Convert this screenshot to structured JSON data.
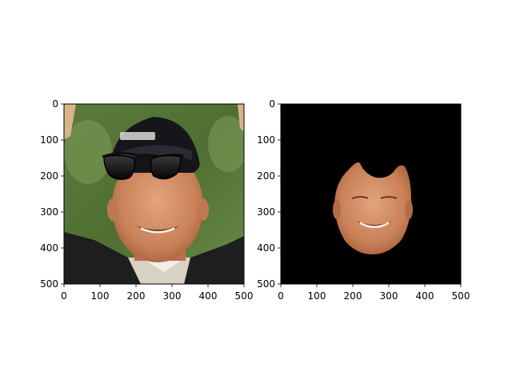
{
  "chart_data": [
    {
      "type": "image",
      "content": "photo of a smiling man in a cap with sunglasses overlaid on his face",
      "xlim": [
        0,
        500
      ],
      "ylim": [
        500,
        0
      ],
      "xticks": [
        0,
        100,
        200,
        300,
        400,
        500
      ],
      "yticks": [
        0,
        100,
        200,
        300,
        400,
        500
      ],
      "xticklabels": [
        "0",
        "100",
        "200",
        "300",
        "400",
        "500"
      ],
      "yticklabels": [
        "0",
        "100",
        "200",
        "300",
        "400",
        "500"
      ]
    },
    {
      "type": "image",
      "content": "face region of the same man cut out on a black background",
      "xlim": [
        0,
        500
      ],
      "ylim": [
        500,
        0
      ],
      "xticks": [
        0,
        100,
        200,
        300,
        400,
        500
      ],
      "yticks": [
        0,
        100,
        200,
        300,
        400,
        500
      ],
      "xticklabels": [
        "0",
        "100",
        "200",
        "300",
        "400",
        "500"
      ],
      "yticklabels": [
        "0",
        "100",
        "200",
        "300",
        "400",
        "500"
      ]
    }
  ]
}
